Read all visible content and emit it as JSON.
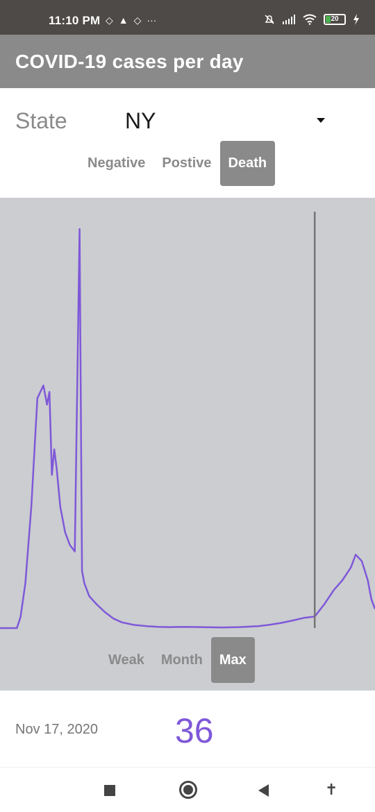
{
  "status_bar": {
    "time": "11:10 PM",
    "battery": "20",
    "more": "···"
  },
  "app_bar": {
    "title": "COVID-19 cases per day"
  },
  "state": {
    "label": "State",
    "value": "NY"
  },
  "metric_tabs": [
    {
      "label": "Negative",
      "active": false
    },
    {
      "label": "Postive",
      "active": false
    },
    {
      "label": "Death",
      "active": true
    }
  ],
  "range_tabs": [
    {
      "label": "Weak",
      "active": false
    },
    {
      "label": "Month",
      "active": false
    },
    {
      "label": "Max",
      "active": true
    }
  ],
  "readout": {
    "date": "Nov 17, 2020",
    "value": "36"
  },
  "colors": {
    "line": "#7f58d8",
    "chart_bg": "#cbcdd1",
    "cursor": "#757575",
    "accent_gray": "#8a8a8a"
  },
  "chart_data": {
    "type": "line",
    "title": "",
    "xlabel": "",
    "ylabel": "",
    "grid": false,
    "legend": "none",
    "cursor_x": "Nov 17, 2020",
    "cursor_value": 36,
    "x_range": [
      "Mar 1, 2020",
      "Jan 6, 2021"
    ],
    "series": [
      {
        "name": "",
        "x": [
          "Mar 1",
          "Mar 15",
          "Mar 18",
          "Mar 22",
          "Mar 27",
          "Apr 1",
          "Apr 6",
          "Apr 9",
          "Apr 11",
          "Apr 13",
          "Apr 15",
          "Apr 17",
          "Apr 20",
          "Apr 24",
          "Apr 28",
          "May 2",
          "May 6",
          "May 8",
          "May 10",
          "May 14",
          "May 20",
          "May 27",
          "Jun 3",
          "Jun 10",
          "Jun 20",
          "Jul 1",
          "Jul 10",
          "Jul 20",
          "Aug 1",
          "Aug 15",
          "Sep 1",
          "Sep 15",
          "Oct 1",
          "Oct 10",
          "Oct 20",
          "Oct 30",
          "Nov 8",
          "Nov 17",
          "Nov 25",
          "Dec 3",
          "Dec 10",
          "Dec 17",
          "Dec 21",
          "Dec 26",
          "Dec 31",
          "Jan 3",
          "Jan 6"
        ],
        "values": [
          0,
          0,
          34,
          140,
          380,
          720,
          760,
          700,
          740,
          480,
          560,
          500,
          380,
          300,
          260,
          240,
          1250,
          180,
          140,
          100,
          75,
          50,
          30,
          18,
          10,
          6,
          4,
          3,
          4,
          3,
          2,
          3,
          6,
          10,
          16,
          24,
          32,
          36,
          75,
          120,
          150,
          190,
          230,
          210,
          150,
          90,
          60
        ]
      }
    ],
    "ylim": [
      0,
      1300
    ]
  }
}
